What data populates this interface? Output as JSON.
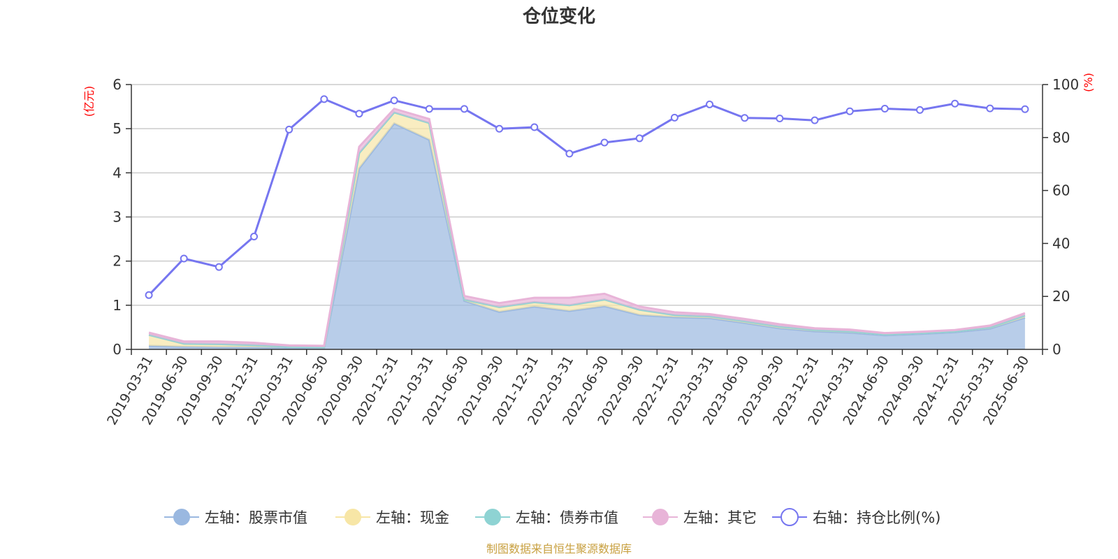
{
  "chart_data": {
    "type": "area",
    "title": "仓位变化",
    "left_axis_unit": "(亿元)",
    "right_axis_unit": "(%)",
    "x": [
      "2019-03-31",
      "2019-06-30",
      "2019-09-30",
      "2019-12-31",
      "2020-03-31",
      "2020-06-30",
      "2020-09-30",
      "2020-12-31",
      "2021-03-31",
      "2021-06-30",
      "2021-09-30",
      "2021-12-31",
      "2022-03-31",
      "2022-06-30",
      "2022-09-30",
      "2022-12-31",
      "2023-03-31",
      "2023-06-30",
      "2023-09-30",
      "2023-12-31",
      "2024-03-31",
      "2024-06-30",
      "2024-09-30",
      "2024-12-31",
      "2025-03-31",
      "2025-06-30"
    ],
    "ylim_left": [
      0,
      6
    ],
    "yticks_left": [
      0,
      1,
      2,
      3,
      4,
      5,
      6
    ],
    "ylim_right": [
      0,
      100
    ],
    "yticks_right": [
      0,
      20,
      40,
      60,
      80,
      100
    ],
    "grid": true,
    "legend_position": "bottom",
    "series": [
      {
        "name": "左轴：股票市值",
        "axis": "left",
        "kind": "stacked-area",
        "color": "#9ab8e0",
        "values": [
          0.08,
          0.06,
          0.05,
          0.05,
          0.04,
          0.03,
          4.1,
          5.12,
          4.75,
          1.1,
          0.85,
          0.97,
          0.87,
          0.98,
          0.78,
          0.73,
          0.71,
          0.6,
          0.48,
          0.41,
          0.38,
          0.32,
          0.35,
          0.39,
          0.47,
          0.72
        ]
      },
      {
        "name": "左轴：现金",
        "axis": "left",
        "kind": "stacked-area",
        "color": "#f7e6a6",
        "values": [
          0.25,
          0.07,
          0.07,
          0.05,
          0.02,
          0.02,
          0.35,
          0.25,
          0.38,
          0.03,
          0.11,
          0.1,
          0.13,
          0.15,
          0.12,
          0.05,
          0.04,
          0.04,
          0.04,
          0.03,
          0.03,
          0.02,
          0.02,
          0.02,
          0.03,
          0.05
        ]
      },
      {
        "name": "左轴：债券市值",
        "axis": "left",
        "kind": "stacked-area",
        "color": "#8ed3d3",
        "values": [
          0,
          0,
          0,
          0,
          0,
          0,
          0,
          0,
          0,
          0,
          0,
          0,
          0,
          0,
          0,
          0,
          0,
          0,
          0,
          0,
          0,
          0,
          0,
          0,
          0,
          0
        ]
      },
      {
        "name": "左轴：其它",
        "axis": "left",
        "kind": "stacked-area",
        "color": "#e8b4d8",
        "values": [
          0.05,
          0.05,
          0.06,
          0.05,
          0.03,
          0.03,
          0.14,
          0.08,
          0.09,
          0.08,
          0.09,
          0.1,
          0.17,
          0.13,
          0.07,
          0.06,
          0.05,
          0.05,
          0.05,
          0.04,
          0.04,
          0.03,
          0.03,
          0.03,
          0.04,
          0.05
        ]
      },
      {
        "name": "右轴：持仓比例(%)",
        "axis": "right",
        "kind": "line",
        "color": "#7676f0",
        "values": [
          20.5,
          34.3,
          31.1,
          42.6,
          83.0,
          94.5,
          89.0,
          94.0,
          90.8,
          90.8,
          83.3,
          83.9,
          73.9,
          78.1,
          79.7,
          87.5,
          92.5,
          87.4,
          87.2,
          86.5,
          89.9,
          90.9,
          90.4,
          92.8,
          91.0,
          90.7
        ]
      }
    ],
    "source_note": "制图数据来自恒生聚源数据库"
  }
}
